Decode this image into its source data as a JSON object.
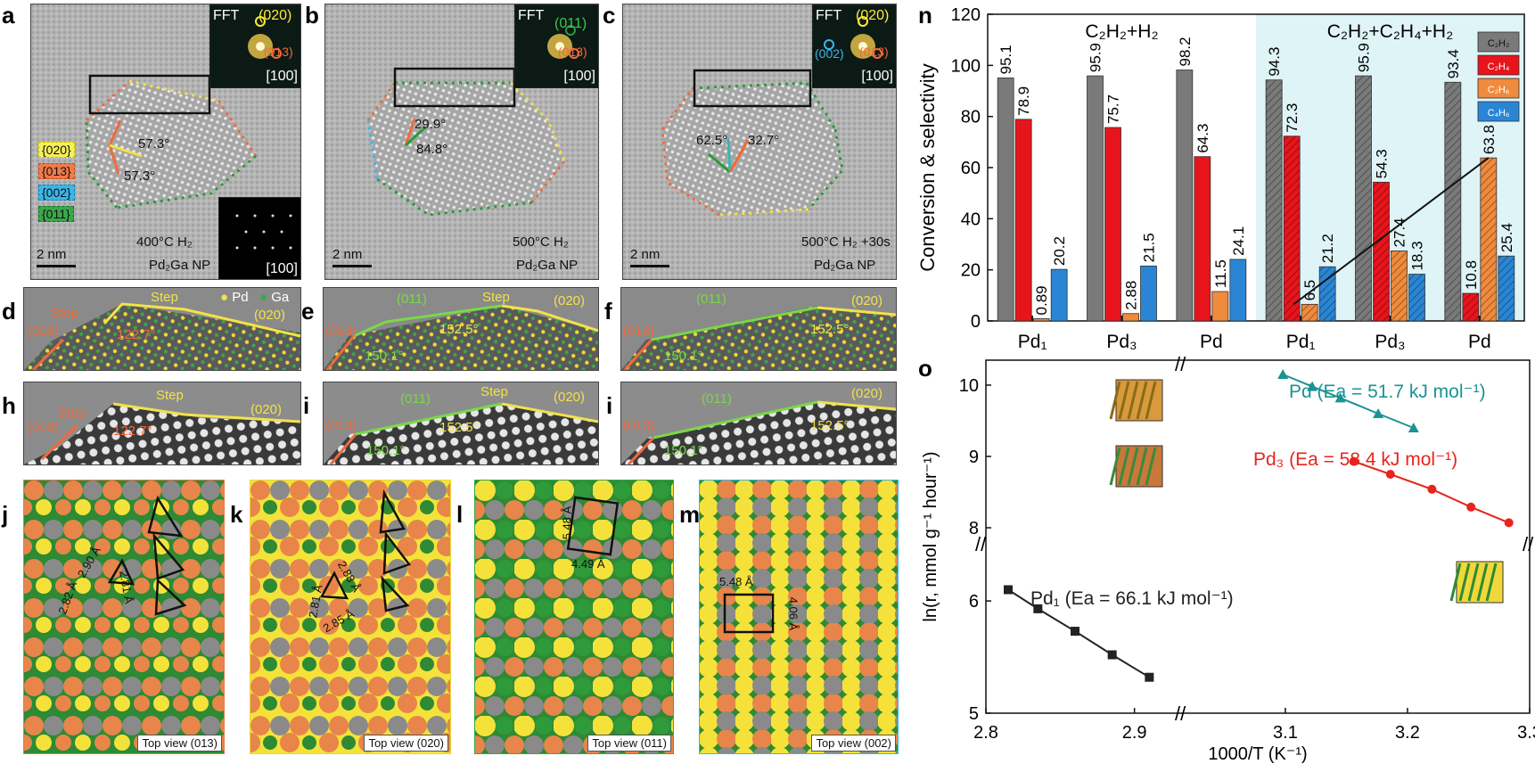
{
  "panels": {
    "a": {
      "letter": "a",
      "fft_label": "FFT",
      "fft_spots": [
        "(020)",
        "(013)"
      ],
      "fft_zone": "[100]",
      "inset_zone": "[100]",
      "angles": [
        "57.3°",
        "57.3°"
      ],
      "legend": [
        "{020}",
        "{013}",
        "{002}",
        "{011}"
      ],
      "scale": "2 nm",
      "condition": "400°C H₂",
      "sample": "Pd₂Ga NP"
    },
    "b": {
      "letter": "b",
      "fft_label": "FFT",
      "fft_spots": [
        "(011)",
        "(013)"
      ],
      "fft_zone": "[100]",
      "angles": [
        "29.9°",
        "84.8°"
      ],
      "scale": "2 nm",
      "condition": "500°C H₂",
      "sample": "Pd₂Ga NP"
    },
    "c": {
      "letter": "c",
      "fft_label": "FFT",
      "fft_spots": [
        "(020)",
        "(002)",
        "(013)"
      ],
      "fft_zone": "[100]",
      "angles": [
        "62.5°",
        "32.7°"
      ],
      "scale": "2 nm",
      "condition": "500°C H₂ +30s",
      "sample": "Pd₂Ga NP"
    },
    "d": {
      "letter": "d",
      "labels": [
        "Step",
        "Step",
        "(013)",
        "(020)",
        "122.7°"
      ],
      "legend_pd": "Pd",
      "legend_ga": "Ga"
    },
    "e": {
      "letter": "e",
      "labels": [
        "(011)",
        "Step",
        "(020)",
        "(013)",
        "152.5°",
        "150.1°"
      ]
    },
    "f": {
      "letter": "f",
      "labels": [
        "(011)",
        "(020)",
        "(013)",
        "152.5°",
        "150.1°"
      ]
    },
    "h": {
      "letter": "h",
      "labels": [
        "Step",
        "Step",
        "(013)",
        "(020)",
        "122.7°"
      ]
    },
    "i": {
      "letter": "i",
      "labels": [
        "(011)",
        "Step",
        "(020)",
        "(013)",
        "152.5°",
        "150.1°"
      ]
    },
    "i2": {
      "letter": "i",
      "labels": [
        "(011)",
        "(020)",
        "(013)",
        "152.5°",
        "150.1°"
      ]
    },
    "j": {
      "letter": "j",
      "dists": [
        "2.90 Å",
        "2.82 Å",
        "2.81 Å"
      ],
      "view": "Top view (013)"
    },
    "k": {
      "letter": "k",
      "dists": [
        "2.81 Å",
        "2.88 Å",
        "2.85 Å"
      ],
      "view": "Top view (020)"
    },
    "l": {
      "letter": "l",
      "dists": [
        "5.48 Å",
        "4.49 Å"
      ],
      "view": "Top view (011)"
    },
    "m": {
      "letter": "m",
      "dists": [
        "5.48 Å",
        "4.06 Å"
      ],
      "view": "Top view (002)"
    },
    "n": {
      "letter": "n"
    },
    "o": {
      "letter": "o"
    }
  },
  "chart_data": [
    {
      "type": "bar",
      "title_left": "C₂H₂+H₂",
      "title_right": "C₂H₂+C₂H₄+H₂",
      "ylabel": "Conversion & selectivity",
      "ylim": [
        0,
        120
      ],
      "yticks": [
        0,
        20,
        40,
        60,
        80,
        100,
        120
      ],
      "categories": [
        "Pd₁",
        "Pd₃",
        "Pd",
        "Pd₁",
        "Pd₃",
        "Pd"
      ],
      "legend": [
        "C₂H₂",
        "C₂H₄",
        "C₂H₆",
        "C₄H₆"
      ],
      "colors": {
        "conv": "#7a7a7a",
        "c2h4": "#e8141c",
        "c2h6": "#f08a3c",
        "c4h6": "#2a86d4",
        "shade": "#dff4f6"
      },
      "series": [
        {
          "name": "C₂H₂ conversion",
          "values": [
            95.1,
            95.9,
            98.2,
            94.3,
            95.9,
            93.4
          ]
        },
        {
          "name": "C₂H₄ selectivity",
          "values": [
            78.9,
            75.7,
            64.3,
            72.3,
            54.3,
            10.8
          ]
        },
        {
          "name": "C₂H₆ selectivity",
          "values": [
            0.89,
            2.88,
            11.5,
            6.5,
            27.4,
            63.8
          ]
        },
        {
          "name": "C₄H₆ selectivity",
          "values": [
            20.2,
            21.5,
            24.1,
            21.2,
            18.3,
            25.4
          ]
        }
      ],
      "bar_labels": [
        [
          "95.1",
          "78.9",
          "0.89",
          "20.2"
        ],
        [
          "95.9",
          "75.7",
          "2.88",
          "21.5"
        ],
        [
          "98.2",
          "64.3",
          "11.5",
          "24.1"
        ],
        [
          "94.3",
          "72.3",
          "6.5",
          "21.2"
        ],
        [
          "95.9",
          "54.3",
          "27.4",
          "18.3"
        ],
        [
          "93.4",
          "10.8",
          "63.8",
          "25.4"
        ]
      ]
    },
    {
      "type": "line",
      "xlabel": "1000/T (K⁻¹)",
      "ylabel": "ln(r, mmol g⁻¹ hour⁻¹)",
      "xticks_left": [
        "2.8",
        "2.9"
      ],
      "xticks_right": [
        "3.1",
        "3.2",
        "3.3"
      ],
      "yticks_top": [
        "8",
        "9",
        "10"
      ],
      "yticks_bottom": [
        "5",
        "6"
      ],
      "series": [
        {
          "name": "Pd",
          "label": "Pd (Ea = 51.7 kJ mol⁻¹)",
          "color": "#1a9393",
          "marker": "triangle",
          "x": [
            3.098,
            3.122,
            3.145,
            3.176,
            3.205
          ],
          "y": [
            10.15,
            9.98,
            9.82,
            9.6,
            9.4
          ]
        },
        {
          "name": "Pd₃",
          "label": "Pd₃ (Ea = 58.4 kJ mol⁻¹)",
          "color": "#e8241c",
          "marker": "circle",
          "x": [
            3.156,
            3.186,
            3.22,
            3.252,
            3.283
          ],
          "y": [
            8.93,
            8.75,
            8.54,
            8.29,
            8.07
          ]
        },
        {
          "name": "Pd₁",
          "label": "Pd₁ (Ea = 66.1 kJ mol⁻¹)",
          "color": "#222222",
          "marker": "square",
          "x": [
            2.815,
            2.835,
            2.86,
            2.885,
            2.91
          ],
          "y": [
            6.1,
            5.93,
            5.73,
            5.52,
            5.32
          ]
        }
      ]
    }
  ]
}
